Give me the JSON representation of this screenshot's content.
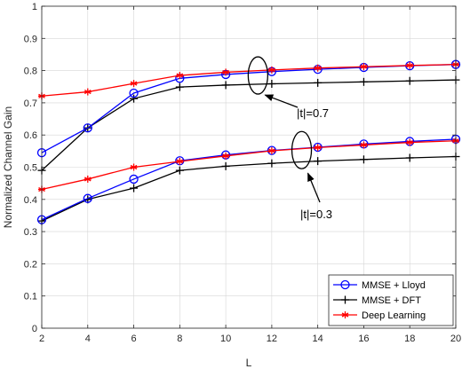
{
  "chart_data": {
    "type": "line",
    "xlabel": "L",
    "ylabel": "Normalized Channel Gain",
    "xlim": [
      2,
      20
    ],
    "ylim": [
      0,
      1
    ],
    "xticks": [
      2,
      4,
      6,
      8,
      10,
      12,
      14,
      16,
      18,
      20
    ],
    "yticks": [
      0,
      0.1,
      0.2,
      0.3,
      0.4,
      0.5,
      0.6,
      0.7,
      0.8,
      0.9,
      1
    ],
    "ytick_labels": [
      "0",
      "0.1",
      "0.2",
      "0.3",
      "0.4",
      "0.5",
      "0.6",
      "0.7",
      "0.8",
      "0.9",
      "1"
    ],
    "grid": true,
    "legend_position": "bottom-right",
    "x": [
      2,
      4,
      6,
      8,
      10,
      12,
      14,
      16,
      18,
      20
    ],
    "series": [
      {
        "name": "MMSE + Lloyd",
        "color": "#0000ff",
        "marker": "circle",
        "group": "|t|=0.7",
        "values": [
          0.545,
          0.622,
          0.73,
          0.776,
          0.788,
          0.797,
          0.804,
          0.81,
          0.815,
          0.819
        ]
      },
      {
        "name": "MMSE + DFT",
        "color": "#000000",
        "marker": "plus",
        "group": "|t|=0.7",
        "values": [
          0.49,
          0.622,
          0.713,
          0.749,
          0.755,
          0.759,
          0.762,
          0.765,
          0.768,
          0.771
        ]
      },
      {
        "name": "Deep Learning",
        "color": "#ff0000",
        "marker": "asterisk",
        "group": "|t|=0.7",
        "values": [
          0.721,
          0.734,
          0.76,
          0.785,
          0.795,
          0.802,
          0.808,
          0.812,
          0.816,
          0.819
        ]
      },
      {
        "name": "MMSE + Lloyd",
        "color": "#0000ff",
        "marker": "circle",
        "group": "|t|=0.3",
        "values": [
          0.337,
          0.403,
          0.463,
          0.52,
          0.538,
          0.552,
          0.562,
          0.572,
          0.58,
          0.587
        ]
      },
      {
        "name": "MMSE + DFT",
        "color": "#000000",
        "marker": "plus",
        "group": "|t|=0.3",
        "values": [
          0.333,
          0.4,
          0.435,
          0.49,
          0.503,
          0.512,
          0.519,
          0.524,
          0.529,
          0.533
        ]
      },
      {
        "name": "Deep Learning",
        "color": "#ff0000",
        "marker": "asterisk",
        "group": "|t|=0.3",
        "values": [
          0.431,
          0.463,
          0.5,
          0.518,
          0.535,
          0.551,
          0.561,
          0.569,
          0.577,
          0.582
        ]
      }
    ],
    "legend": [
      {
        "label": "MMSE + Lloyd",
        "color": "#0000ff",
        "marker": "circle"
      },
      {
        "label": "MMSE + DFT",
        "color": "#000000",
        "marker": "plus"
      },
      {
        "label": "Deep Learning",
        "color": "#ff0000",
        "marker": "asterisk"
      }
    ],
    "annotations": [
      {
        "text": "|t|=0.7",
        "ellipse_center": [
          11.4,
          0.785
        ]
      },
      {
        "text": "|t|=0.3",
        "ellipse_center": [
          13.3,
          0.553
        ]
      }
    ]
  }
}
